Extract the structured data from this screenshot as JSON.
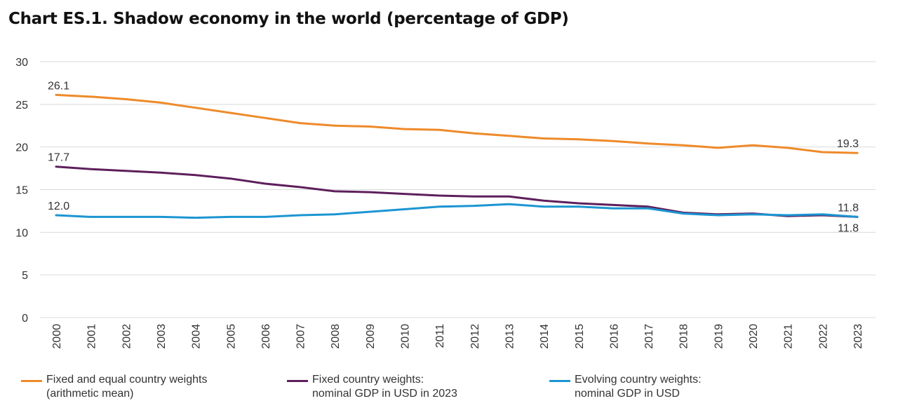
{
  "title": "Chart ES.1. Shadow economy in the world (percentage of GDP)",
  "colors": {
    "orange": "#ee8a2a",
    "purple": "#5e1f5c",
    "blue": "#1c95d2",
    "grid": "#d9d9d9"
  },
  "chart_data": {
    "type": "line",
    "title": "Chart ES.1. Shadow economy in the world (percentage of GDP)",
    "xlabel": "",
    "ylabel": "",
    "ylim": [
      0,
      30
    ],
    "yticks": [
      0,
      5,
      10,
      15,
      20,
      25,
      30
    ],
    "grid": true,
    "categories": [
      "2000",
      "2001",
      "2002",
      "2003",
      "2004",
      "2005",
      "2006",
      "2007",
      "2008",
      "2009",
      "2010",
      "2011",
      "2012",
      "2013",
      "2014",
      "2015",
      "2016",
      "2017",
      "2018",
      "2019",
      "2020",
      "2021",
      "2022",
      "2023"
    ],
    "series": [
      {
        "name": "Fixed and equal country weights (arithmetic mean)",
        "color": "#ee8a2a",
        "values": [
          26.1,
          25.9,
          25.6,
          25.2,
          24.6,
          24.0,
          23.4,
          22.8,
          22.5,
          22.4,
          22.1,
          22.0,
          21.6,
          21.3,
          21.0,
          20.9,
          20.7,
          20.4,
          20.2,
          19.9,
          20.2,
          19.9,
          19.4,
          19.3
        ],
        "labels": [
          {
            "index": 0,
            "text": "26.1",
            "pos": "above"
          },
          {
            "index": 23,
            "text": "19.3",
            "pos": "above"
          }
        ]
      },
      {
        "name": "Fixed country weights: nominal GDP in USD in 2023",
        "color": "#5e1f5c",
        "values": [
          17.7,
          17.4,
          17.2,
          17.0,
          16.7,
          16.3,
          15.7,
          15.3,
          14.8,
          14.7,
          14.5,
          14.3,
          14.2,
          14.2,
          13.7,
          13.4,
          13.2,
          13.0,
          12.3,
          12.1,
          12.2,
          11.9,
          12.0,
          11.8
        ],
        "labels": [
          {
            "index": 0,
            "text": "17.7",
            "pos": "above"
          },
          {
            "index": 23,
            "text": "11.8",
            "pos": "below"
          }
        ]
      },
      {
        "name": "Evolving country weights: nominal GDP in USD",
        "color": "#1c95d2",
        "values": [
          12.0,
          11.8,
          11.8,
          11.8,
          11.7,
          11.8,
          11.8,
          12.0,
          12.1,
          12.4,
          12.7,
          13.0,
          13.1,
          13.3,
          13.0,
          13.0,
          12.8,
          12.8,
          12.2,
          12.0,
          12.1,
          12.0,
          12.1,
          11.8
        ],
        "labels": [
          {
            "index": 0,
            "text": "12.0",
            "pos": "above"
          },
          {
            "index": 23,
            "text": "11.8",
            "pos": "above"
          }
        ]
      }
    ]
  },
  "legend": [
    {
      "line1": "Fixed and equal country weights",
      "line2": "(arithmetic mean)",
      "color": "#ee8a2a"
    },
    {
      "line1": "Fixed country weights:",
      "line2": "nominal GDP in USD in 2023",
      "color": "#5e1f5c"
    },
    {
      "line1": "Evolving country weights:",
      "line2": "nominal GDP in USD",
      "color": "#1c95d2"
    }
  ]
}
